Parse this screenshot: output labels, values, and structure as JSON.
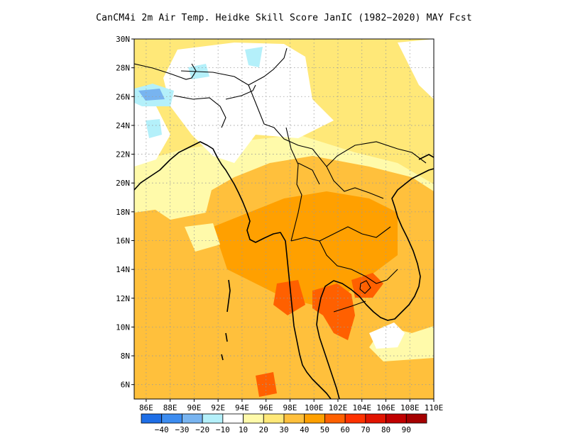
{
  "title": "CanCM4i  2m Air Temp. Heidke Skill Score JanIC (1982−2020) MAY Fcst",
  "map": {
    "lon_range": [
      85,
      110
    ],
    "lat_range": [
      5,
      30
    ],
    "lat_ticks": [
      {
        "value": 30,
        "label": "30N"
      },
      {
        "value": 28,
        "label": "28N"
      },
      {
        "value": 26,
        "label": "26N"
      },
      {
        "value": 24,
        "label": "24N"
      },
      {
        "value": 22,
        "label": "22N"
      },
      {
        "value": 20,
        "label": "20N"
      },
      {
        "value": 18,
        "label": "18N"
      },
      {
        "value": 16,
        "label": "16N"
      },
      {
        "value": 14,
        "label": "14N"
      },
      {
        "value": 12,
        "label": "12N"
      },
      {
        "value": 10,
        "label": "10N"
      },
      {
        "value": 8,
        "label": "8N"
      },
      {
        "value": 6,
        "label": "6N"
      }
    ],
    "lon_ticks": [
      {
        "value": 86,
        "label": "86E"
      },
      {
        "value": 88,
        "label": "88E"
      },
      {
        "value": 90,
        "label": "90E"
      },
      {
        "value": 92,
        "label": "92E"
      },
      {
        "value": 94,
        "label": "94E"
      },
      {
        "value": 96,
        "label": "96E"
      },
      {
        "value": 98,
        "label": "98E"
      },
      {
        "value": 100,
        "label": "100E"
      },
      {
        "value": 102,
        "label": "102E"
      },
      {
        "value": 104,
        "label": "104E"
      },
      {
        "value": 106,
        "label": "106E"
      },
      {
        "value": 108,
        "label": "108E"
      },
      {
        "value": 110,
        "label": "110E"
      }
    ],
    "grid": "dotted"
  },
  "colorbar": {
    "colors": [
      "#1e6ee6",
      "#3c8cf0",
      "#78b4f0",
      "#b4f0fa",
      "#ffffff",
      "#fffaaa",
      "#ffe878",
      "#ffc03c",
      "#ffa000",
      "#ff6000",
      "#ff3200",
      "#e11400",
      "#c00000",
      "#a50000"
    ],
    "labels": [
      "−40",
      "−30",
      "−20",
      "−10",
      "10",
      "20",
      "30",
      "40",
      "50",
      "60",
      "70",
      "80",
      "90"
    ]
  }
}
